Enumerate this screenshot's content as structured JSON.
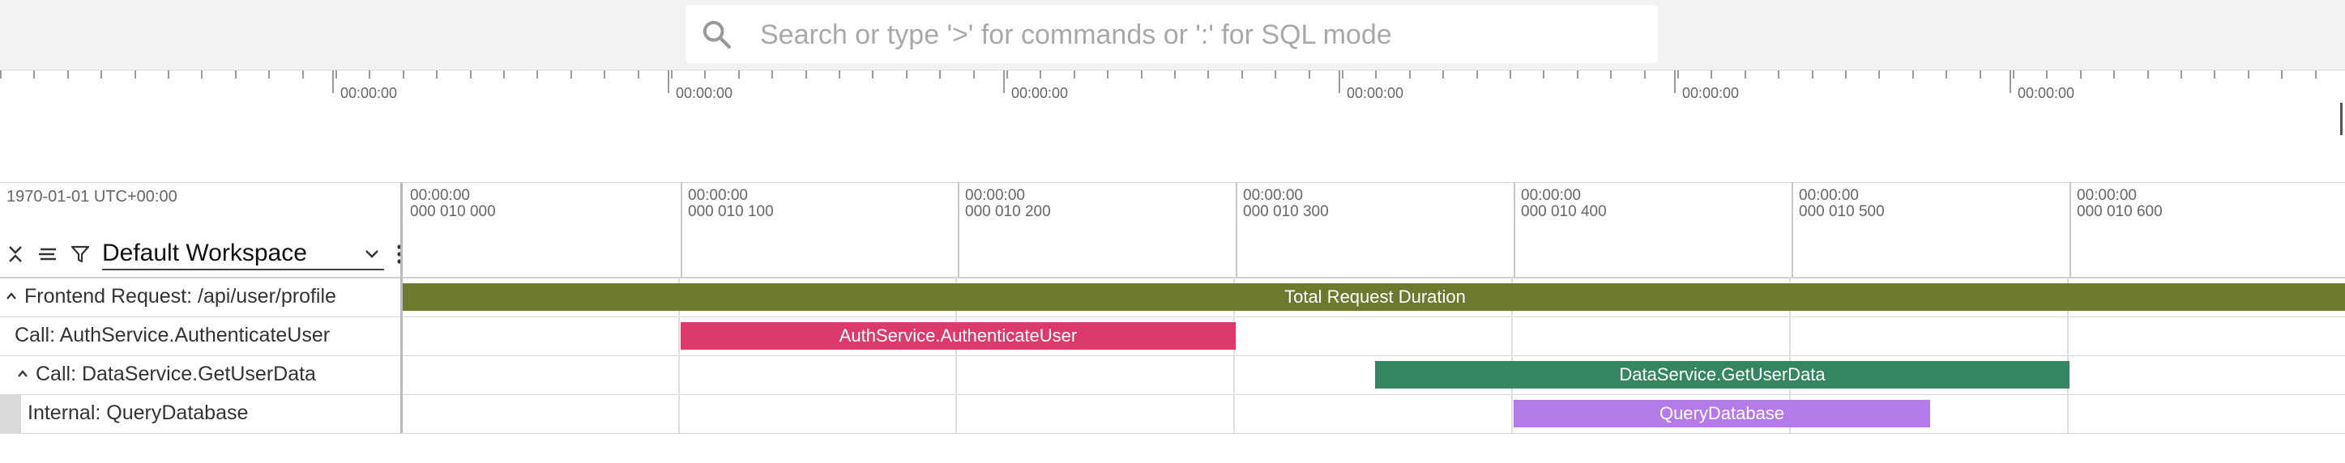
{
  "search": {
    "placeholder": "Search or type '>' for commands or ':' for SQL mode",
    "value": ""
  },
  "overview": {
    "labels": [
      "00:00:00",
      "00:00:00",
      "00:00:00",
      "00:00:00",
      "00:00:00",
      "00:00:00"
    ]
  },
  "header": {
    "date_label": "1970-01-01 UTC+00:00",
    "workspace": "Default Workspace",
    "icons": [
      "collapse-all-icon",
      "list-icon",
      "filter-icon",
      "chevron-down-icon",
      "more-vert-icon"
    ],
    "time_labels": [
      {
        "line1": "00:00:00",
        "line2": "000 010 000"
      },
      {
        "line1": "00:00:00",
        "line2": "000 010 100"
      },
      {
        "line1": "00:00:00",
        "line2": "000 010 200"
      },
      {
        "line1": "00:00:00",
        "line2": "000 010 300"
      },
      {
        "line1": "00:00:00",
        "line2": "000 010 400"
      },
      {
        "line1": "00:00:00",
        "line2": "000 010 500"
      },
      {
        "line1": "00:00:00",
        "line2": "000 010 600"
      }
    ]
  },
  "tracks": [
    {
      "title": "Frontend Request: /api/user/profile",
      "expanded": true,
      "slice": {
        "name": "Total Request Duration",
        "color": "#6b7a2f"
      }
    },
    {
      "title": "Call: AuthService.AuthenticateUser",
      "expanded": false,
      "slice": {
        "name": "AuthService.AuthenticateUser",
        "color": "#dc3a6b"
      }
    },
    {
      "title": "Call: DataService.GetUserData",
      "expanded": true,
      "slice": {
        "name": "DataService.GetUserData",
        "color": "#358560"
      }
    },
    {
      "title": "Internal: QueryDatabase",
      "expanded": false,
      "slice": {
        "name": "QueryDatabase",
        "color": "#b57aea"
      }
    }
  ]
}
